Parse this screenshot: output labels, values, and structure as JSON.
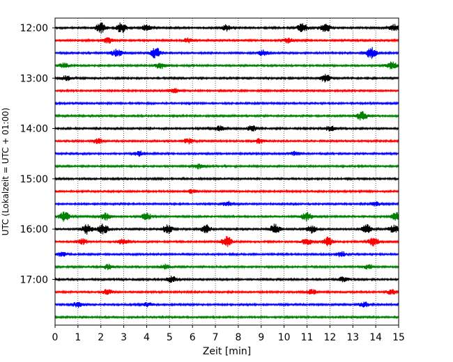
{
  "chart_data": {
    "type": "line",
    "title": "",
    "xlabel": "Zeit  [min]",
    "ylabel": "UTC (Lokalzeit = UTC + 01:00)",
    "xlim": [
      0,
      15
    ],
    "x_ticks": [
      0,
      1,
      2,
      3,
      4,
      5,
      6,
      7,
      8,
      9,
      10,
      11,
      12,
      13,
      14,
      15
    ],
    "y_tick_labels": [
      "12:00",
      "13:00",
      "14:00",
      "15:00",
      "16:00",
      "17:00"
    ],
    "grid": "vertical dotted at each minute",
    "trace_colors": [
      "#000000",
      "#ff0000",
      "#0000ff",
      "#008000"
    ],
    "rows": [
      {
        "time": "12:00",
        "color": "#000000",
        "bursts": [
          [
            2.0,
            2.5
          ],
          [
            2.9,
            2.3
          ],
          [
            4.0,
            1.6
          ],
          [
            7.5,
            1.4
          ],
          [
            10.8,
            2.0
          ],
          [
            11.8,
            2.0
          ],
          [
            14.8,
            1.6
          ]
        ]
      },
      {
        "time": "12:15",
        "color": "#ff0000",
        "bursts": [
          [
            2.3,
            1.3
          ],
          [
            5.8,
            1.0
          ],
          [
            10.2,
            1.2
          ]
        ]
      },
      {
        "time": "12:30",
        "color": "#0000ff",
        "bursts": [
          [
            2.7,
            2.0
          ],
          [
            4.4,
            2.5
          ],
          [
            9.1,
            1.3
          ],
          [
            13.8,
            2.6
          ]
        ]
      },
      {
        "time": "12:45",
        "color": "#008000",
        "bursts": [
          [
            0.4,
            1.2
          ],
          [
            4.6,
            1.4
          ],
          [
            14.7,
            1.8
          ]
        ]
      },
      {
        "time": "13:00",
        "color": "#000000",
        "bursts": [
          [
            0.5,
            1.2
          ],
          [
            11.8,
            1.8
          ]
        ]
      },
      {
        "time": "13:15",
        "color": "#ff0000",
        "bursts": [
          [
            5.2,
            1.1
          ]
        ]
      },
      {
        "time": "13:30",
        "color": "#0000ff",
        "bursts": []
      },
      {
        "time": "13:45",
        "color": "#008000",
        "bursts": [
          [
            13.4,
            2.2
          ]
        ]
      },
      {
        "time": "14:00",
        "color": "#000000",
        "bursts": [
          [
            7.2,
            1.2
          ],
          [
            8.6,
            1.4
          ],
          [
            12.0,
            1.2
          ]
        ]
      },
      {
        "time": "14:15",
        "color": "#ff0000",
        "bursts": [
          [
            1.9,
            1.3
          ],
          [
            5.8,
            1.2
          ],
          [
            8.9,
            1.1
          ]
        ]
      },
      {
        "time": "14:30",
        "color": "#0000ff",
        "bursts": [
          [
            3.7,
            1.1
          ],
          [
            10.5,
            1.0
          ]
        ]
      },
      {
        "time": "14:45",
        "color": "#008000",
        "bursts": [
          [
            6.3,
            1.1
          ]
        ]
      },
      {
        "time": "15:00",
        "color": "#000000",
        "bursts": []
      },
      {
        "time": "15:15",
        "color": "#ff0000",
        "bursts": [
          [
            6.0,
            1.0
          ]
        ]
      },
      {
        "time": "15:30",
        "color": "#0000ff",
        "bursts": [
          [
            7.5,
            1.3
          ],
          [
            14.0,
            1.1
          ]
        ]
      },
      {
        "time": "15:45",
        "color": "#008000",
        "bursts": [
          [
            0.4,
            2.3
          ],
          [
            2.2,
            1.6
          ],
          [
            4.0,
            1.6
          ],
          [
            11.0,
            2.0
          ],
          [
            14.9,
            1.8
          ]
        ]
      },
      {
        "time": "16:00",
        "color": "#000000",
        "bursts": [
          [
            1.4,
            2.2
          ],
          [
            2.1,
            2.5
          ],
          [
            4.9,
            2.2
          ],
          [
            6.6,
            2.0
          ],
          [
            9.6,
            2.2
          ],
          [
            11.2,
            1.8
          ],
          [
            13.6,
            2.0
          ],
          [
            14.8,
            2.0
          ]
        ]
      },
      {
        "time": "16:15",
        "color": "#ff0000",
        "bursts": [
          [
            1.2,
            1.4
          ],
          [
            3.0,
            1.4
          ],
          [
            7.5,
            2.4
          ],
          [
            11.0,
            1.5
          ],
          [
            11.9,
            2.2
          ],
          [
            13.9,
            2.2
          ]
        ]
      },
      {
        "time": "16:30",
        "color": "#0000ff",
        "bursts": [
          [
            0.3,
            1.2
          ],
          [
            12.5,
            1.2
          ]
        ]
      },
      {
        "time": "16:45",
        "color": "#008000",
        "bursts": [
          [
            2.3,
            1.1
          ],
          [
            4.8,
            1.2
          ],
          [
            13.7,
            1.1
          ]
        ]
      },
      {
        "time": "17:00",
        "color": "#000000",
        "bursts": [
          [
            5.1,
            1.6
          ],
          [
            12.6,
            1.2
          ]
        ]
      },
      {
        "time": "17:15",
        "color": "#ff0000",
        "bursts": [
          [
            2.3,
            1.4
          ],
          [
            11.2,
            1.2
          ],
          [
            14.7,
            1.2
          ]
        ]
      },
      {
        "time": "17:30",
        "color": "#0000ff",
        "bursts": [
          [
            1.0,
            1.3
          ],
          [
            4.0,
            1.2
          ],
          [
            13.5,
            1.2
          ]
        ]
      },
      {
        "time": "17:45",
        "color": "#008000",
        "bursts": []
      }
    ]
  }
}
